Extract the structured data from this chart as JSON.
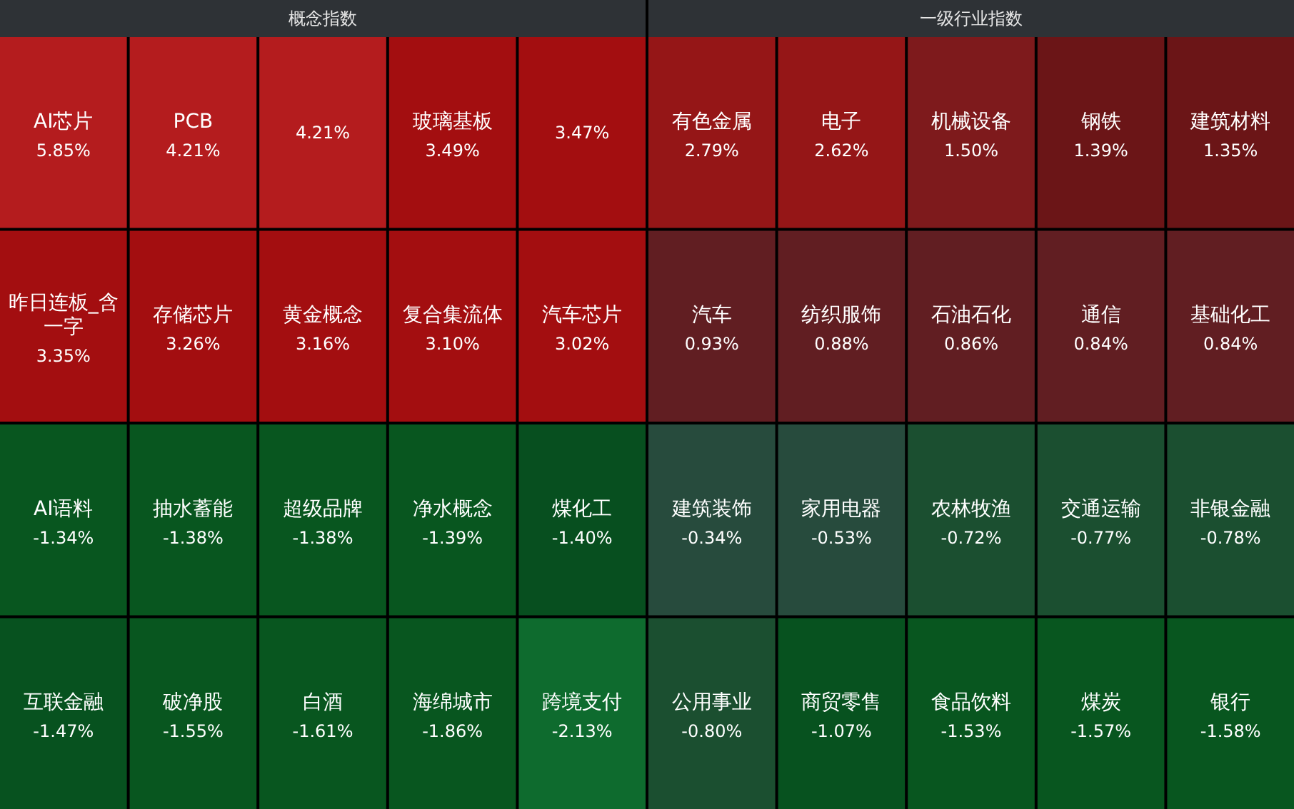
{
  "chart_data": [
    {
      "type": "other",
      "title": "概念指数",
      "categories": [
        "AI芯片",
        "PCB",
        null,
        "玻璃基板",
        null,
        "昨日连板_含一字",
        "存储芯片",
        "黄金概念",
        "复合集流体",
        "汽车芯片",
        "AI语料",
        "抽水蓄能",
        "超级品牌",
        "净水概念",
        "煤化工",
        "互联金融",
        "破净股",
        "白酒",
        "海绵城市",
        "跨境支付"
      ],
      "values": [
        5.85,
        4.21,
        4.21,
        3.49,
        3.47,
        3.35,
        3.26,
        3.16,
        3.1,
        3.02,
        -1.34,
        -1.38,
        -1.38,
        -1.39,
        -1.4,
        -1.47,
        -1.55,
        -1.61,
        -1.86,
        -2.13
      ],
      "value_labels": [
        "5.85%",
        "4.21%",
        "4.21%",
        "3.49%",
        "3.47%",
        "3.35%",
        "3.26%",
        "3.16%",
        "3.10%",
        "3.02%",
        "-1.34%",
        "-1.38%",
        "-1.38%",
        "-1.39%",
        "-1.40%",
        "-1.47%",
        "-1.55%",
        "-1.61%",
        "-1.86%",
        "-2.13%"
      ],
      "colors": [
        "#b41c1e",
        "#b41c1e",
        "#b41c1e",
        "#a30e10",
        "#a30e10",
        "#a30e10",
        "#a30e10",
        "#a30e10",
        "#a30e10",
        "#a30e10",
        "#08561f",
        "#08561f",
        "#08561f",
        "#08561f",
        "#074f1f",
        "#07521f",
        "#08561f",
        "#08561f",
        "#08561f",
        "#0e6b2e"
      ]
    },
    {
      "type": "other",
      "title": "一级行业指数",
      "categories": [
        "有色金属",
        "电子",
        "机械设备",
        "钢铁",
        "建筑材料",
        "汽车",
        "纺织服饰",
        "石油石化",
        "通信",
        "基础化工",
        "建筑装饰",
        "家用电器",
        "农林牧渔",
        "交通运输",
        "非银金融",
        "公用事业",
        "商贸零售",
        "食品饮料",
        "煤炭",
        "银行"
      ],
      "values": [
        2.79,
        2.62,
        1.5,
        1.39,
        1.35,
        0.93,
        0.88,
        0.86,
        0.84,
        0.84,
        -0.34,
        -0.53,
        -0.72,
        -0.77,
        -0.78,
        -0.8,
        -1.07,
        -1.53,
        -1.57,
        -1.58
      ],
      "value_labels": [
        "2.79%",
        "2.62%",
        "1.50%",
        "1.39%",
        "1.35%",
        "0.93%",
        "0.88%",
        "0.86%",
        "0.84%",
        "0.84%",
        "-0.34%",
        "-0.53%",
        "-0.72%",
        "-0.77%",
        "-0.78%",
        "-0.80%",
        "-1.07%",
        "-1.53%",
        "-1.57%",
        "-1.58%"
      ],
      "colors": [
        "#951617",
        "#951617",
        "#7e1a1c",
        "#6b1517",
        "#6b1517",
        "#611e22",
        "#611e22",
        "#611e22",
        "#611e22",
        "#611e22",
        "#274b3d",
        "#274b3d",
        "#1b4f30",
        "#1b4f30",
        "#1b4f30",
        "#1b4f30",
        "#07521f",
        "#08561f",
        "#08561f",
        "#08561f"
      ]
    }
  ]
}
